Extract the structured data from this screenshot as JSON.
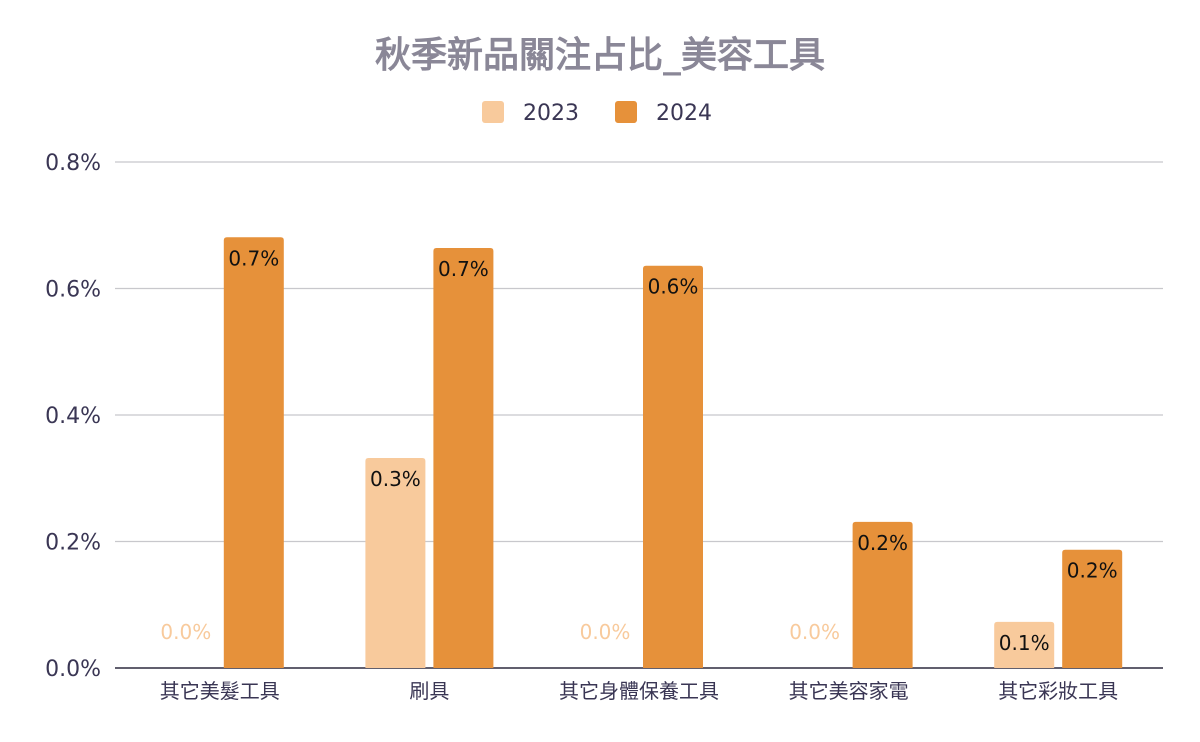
{
  "chart_data": {
    "type": "bar",
    "title": "秋季新品關注占比_美容工具",
    "xlabel": "",
    "ylabel": "",
    "categories": [
      "其它美髮工具",
      "刷具",
      "其它身體保養工具",
      "其它美容家電",
      "其它彩妝工具"
    ],
    "series": [
      {
        "name": "2023",
        "color": "#F8CA9C",
        "values": [
          0.0,
          0.332,
          0.0,
          0.0,
          0.073
        ],
        "labels": [
          "0.0%",
          "0.3%",
          "0.0%",
          "0.0%",
          "0.1%"
        ]
      },
      {
        "name": "2024",
        "color": "#E6913A",
        "values": [
          0.681,
          0.664,
          0.636,
          0.231,
          0.187
        ],
        "labels": [
          "0.7%",
          "0.7%",
          "0.6%",
          "0.2%",
          "0.2%"
        ]
      }
    ],
    "ylim": [
      0,
      0.8
    ],
    "yticks": [
      0,
      0.2,
      0.4,
      0.6,
      0.8
    ],
    "ytick_labels": [
      "0.0%",
      "0.2%",
      "0.4%",
      "0.6%",
      "0.8%"
    ],
    "grid": true,
    "legend": "top-center"
  }
}
